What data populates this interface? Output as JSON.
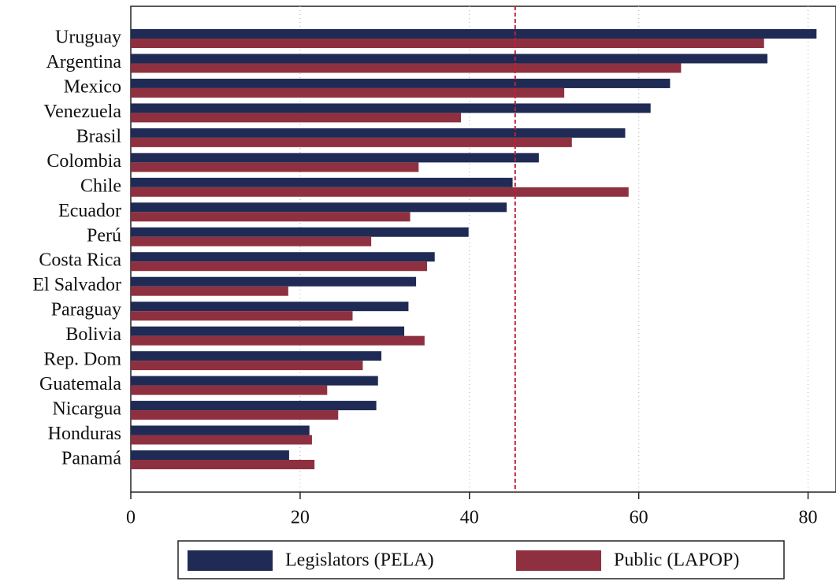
{
  "chart_data": {
    "type": "bar",
    "orientation": "horizontal",
    "categories": [
      "Uruguay",
      "Argentina",
      "Mexico",
      "Venezuela",
      "Brasil",
      "Colombia",
      "Chile",
      "Ecuador",
      "Perú",
      "Costa Rica",
      "El Salvador",
      "Paraguay",
      "Bolivia",
      "Rep. Dom",
      "Guatemala",
      "Nicargua",
      "Honduras",
      "Panamá"
    ],
    "series": [
      {
        "name": "Legislators (PELA)",
        "color": "#1f2b55",
        "values": [
          81.0,
          75.2,
          63.7,
          61.4,
          58.4,
          48.2,
          45.1,
          44.4,
          39.9,
          35.9,
          33.7,
          32.8,
          32.3,
          29.6,
          29.2,
          29.0,
          21.1,
          18.7
        ]
      },
      {
        "name": "Public (LAPOP)",
        "color": "#8e3040",
        "values": [
          74.8,
          65.0,
          51.2,
          39.0,
          52.1,
          34.0,
          58.8,
          33.0,
          28.4,
          35.0,
          18.6,
          26.2,
          34.7,
          27.4,
          23.2,
          24.5,
          21.4,
          21.7
        ]
      }
    ],
    "xlim": [
      0,
      83.3
    ],
    "xticks": [
      0,
      20,
      40,
      60,
      80
    ],
    "grid": true,
    "reference_line": 45.4,
    "reference_color": "#c0203a",
    "legend": "bottom"
  }
}
